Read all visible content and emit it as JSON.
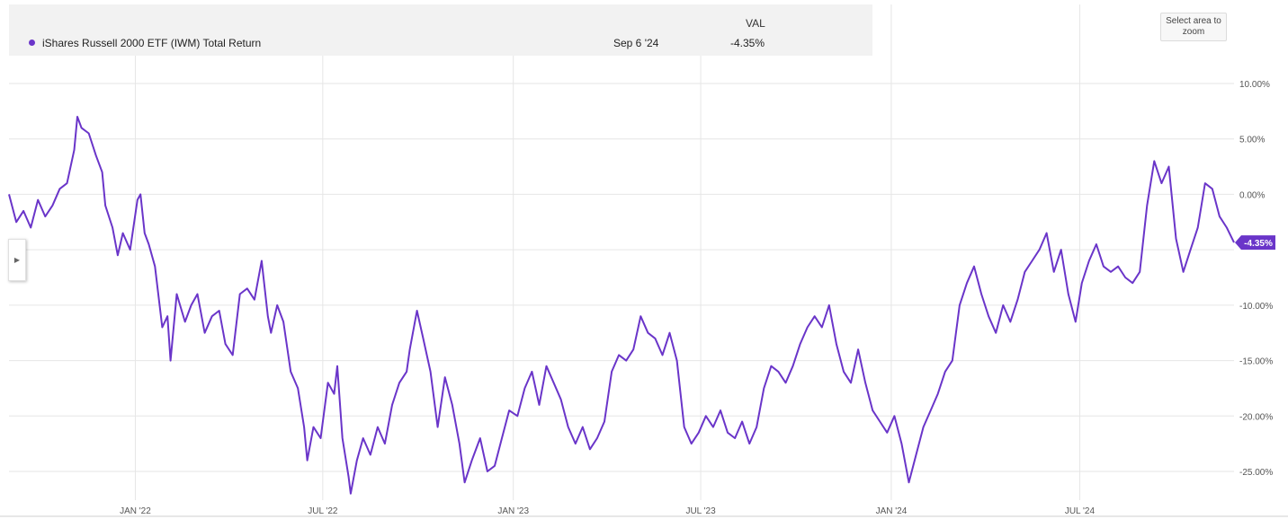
{
  "legend": {
    "column_header": "VAL",
    "series_name": "iShares Russell 2000 ETF (IWM) Total Return",
    "date": "Sep 6 '24",
    "value": "-4.35%"
  },
  "controls": {
    "zoom_hint": "Select area to zoom",
    "side_toggle_icon": "chevron-right-icon"
  },
  "colors": {
    "line": "#6a35c9",
    "grid": "#e6e6e6",
    "legend_bg": "#f2f2f2"
  },
  "chart_data": {
    "type": "line",
    "grid": true,
    "y_tick_labels": [
      "10.00%",
      "5.00%",
      "0.00%",
      "-10.00%",
      "-15.00%",
      "-20.00%",
      "-25.00%"
    ],
    "ylim": [
      -27,
      12.5
    ],
    "x_tick_labels": [
      "JAN '22",
      "JUL '22",
      "JAN '23",
      "JUL '23",
      "JAN '24",
      "JUL '24"
    ],
    "last_value_label": "-4.35%",
    "series": [
      {
        "name": "iShares Russell 2000 ETF (IWM) Total Return",
        "points": [
          [
            "2021-09-01",
            0.0
          ],
          [
            "2021-09-08",
            -2.5
          ],
          [
            "2021-09-15",
            -1.5
          ],
          [
            "2021-09-22",
            -3.0
          ],
          [
            "2021-09-29",
            -0.5
          ],
          [
            "2021-10-06",
            -2.0
          ],
          [
            "2021-10-13",
            -1.0
          ],
          [
            "2021-10-20",
            0.5
          ],
          [
            "2021-10-27",
            1.0
          ],
          [
            "2021-11-03",
            4.0
          ],
          [
            "2021-11-06",
            7.0
          ],
          [
            "2021-11-10",
            6.0
          ],
          [
            "2021-11-17",
            5.5
          ],
          [
            "2021-11-24",
            3.5
          ],
          [
            "2021-11-30",
            2.0
          ],
          [
            "2021-12-03",
            -1.0
          ],
          [
            "2021-12-10",
            -3.0
          ],
          [
            "2021-12-15",
            -5.5
          ],
          [
            "2021-12-20",
            -3.5
          ],
          [
            "2021-12-27",
            -5.0
          ],
          [
            "2022-01-03",
            -0.5
          ],
          [
            "2022-01-06",
            0.0
          ],
          [
            "2022-01-10",
            -3.5
          ],
          [
            "2022-01-14",
            -4.5
          ],
          [
            "2022-01-20",
            -6.5
          ],
          [
            "2022-01-27",
            -12.0
          ],
          [
            "2022-02-01",
            -11.0
          ],
          [
            "2022-02-04",
            -15.0
          ],
          [
            "2022-02-10",
            -9.0
          ],
          [
            "2022-02-18",
            -11.5
          ],
          [
            "2022-02-24",
            -10.0
          ],
          [
            "2022-03-02",
            -9.0
          ],
          [
            "2022-03-09",
            -12.5
          ],
          [
            "2022-03-16",
            -11.0
          ],
          [
            "2022-03-23",
            -10.5
          ],
          [
            "2022-03-29",
            -13.5
          ],
          [
            "2022-04-05",
            -14.5
          ],
          [
            "2022-04-12",
            -9.0
          ],
          [
            "2022-04-19",
            -8.5
          ],
          [
            "2022-04-26",
            -9.5
          ],
          [
            "2022-05-03",
            -6.0
          ],
          [
            "2022-05-09",
            -11.0
          ],
          [
            "2022-05-12",
            -12.5
          ],
          [
            "2022-05-18",
            -10.0
          ],
          [
            "2022-05-24",
            -11.5
          ],
          [
            "2022-05-31",
            -16.0
          ],
          [
            "2022-06-07",
            -17.5
          ],
          [
            "2022-06-13",
            -21.0
          ],
          [
            "2022-06-16",
            -24.0
          ],
          [
            "2022-06-22",
            -21.0
          ],
          [
            "2022-06-29",
            -22.0
          ],
          [
            "2022-07-06",
            -17.0
          ],
          [
            "2022-07-12",
            -18.0
          ],
          [
            "2022-07-15",
            -15.5
          ],
          [
            "2022-07-20",
            -22.0
          ],
          [
            "2022-07-26",
            -25.5
          ],
          [
            "2022-07-28",
            -27.0
          ],
          [
            "2022-08-03",
            -24.0
          ],
          [
            "2022-08-09",
            -22.0
          ],
          [
            "2022-08-16",
            -23.5
          ],
          [
            "2022-08-23",
            -21.0
          ],
          [
            "2022-08-30",
            -22.5
          ],
          [
            "2022-09-06",
            -19.0
          ],
          [
            "2022-09-13",
            -17.0
          ],
          [
            "2022-09-20",
            -16.0
          ],
          [
            "2022-09-23",
            -14.0
          ],
          [
            "2022-09-30",
            -10.5
          ],
          [
            "2022-10-06",
            -13.0
          ],
          [
            "2022-10-13",
            -16.0
          ],
          [
            "2022-10-20",
            -21.0
          ],
          [
            "2022-10-27",
            -16.5
          ],
          [
            "2022-11-03",
            -19.0
          ],
          [
            "2022-11-10",
            -22.5
          ],
          [
            "2022-11-15",
            -26.0
          ],
          [
            "2022-11-22",
            -24.0
          ],
          [
            "2022-11-30",
            -22.0
          ],
          [
            "2022-12-07",
            -25.0
          ],
          [
            "2022-12-14",
            -24.5
          ],
          [
            "2022-12-21",
            -22.0
          ],
          [
            "2022-12-28",
            -19.5
          ],
          [
            "2023-01-05",
            -20.0
          ],
          [
            "2023-01-12",
            -17.5
          ],
          [
            "2023-01-19",
            -16.0
          ],
          [
            "2023-01-26",
            -19.0
          ],
          [
            "2023-02-02",
            -15.5
          ],
          [
            "2023-02-09",
            -17.0
          ],
          [
            "2023-02-16",
            -18.5
          ],
          [
            "2023-02-23",
            -21.0
          ],
          [
            "2023-03-02",
            -22.5
          ],
          [
            "2023-03-09",
            -21.0
          ],
          [
            "2023-03-16",
            -23.0
          ],
          [
            "2023-03-23",
            -22.0
          ],
          [
            "2023-03-30",
            -20.5
          ],
          [
            "2023-04-06",
            -16.0
          ],
          [
            "2023-04-13",
            -14.5
          ],
          [
            "2023-04-20",
            -15.0
          ],
          [
            "2023-04-27",
            -14.0
          ],
          [
            "2023-05-04",
            -11.0
          ],
          [
            "2023-05-11",
            -12.5
          ],
          [
            "2023-05-18",
            -13.0
          ],
          [
            "2023-05-25",
            -14.5
          ],
          [
            "2023-06-01",
            -12.5
          ],
          [
            "2023-06-08",
            -15.0
          ],
          [
            "2023-06-15",
            -21.0
          ],
          [
            "2023-06-22",
            -22.5
          ],
          [
            "2023-06-29",
            -21.5
          ],
          [
            "2023-07-06",
            -20.0
          ],
          [
            "2023-07-13",
            -21.0
          ],
          [
            "2023-07-20",
            -19.5
          ],
          [
            "2023-07-27",
            -21.5
          ],
          [
            "2023-08-03",
            -22.0
          ],
          [
            "2023-08-10",
            -20.5
          ],
          [
            "2023-08-17",
            -22.5
          ],
          [
            "2023-08-24",
            -21.0
          ],
          [
            "2023-08-31",
            -17.5
          ],
          [
            "2023-09-07",
            -15.5
          ],
          [
            "2023-09-14",
            -16.0
          ],
          [
            "2023-09-21",
            -17.0
          ],
          [
            "2023-09-28",
            -15.5
          ],
          [
            "2023-10-05",
            -13.5
          ],
          [
            "2023-10-12",
            -12.0
          ],
          [
            "2023-10-19",
            -11.0
          ],
          [
            "2023-10-26",
            -12.0
          ],
          [
            "2023-11-02",
            -10.0
          ],
          [
            "2023-11-09",
            -13.5
          ],
          [
            "2023-11-16",
            -16.0
          ],
          [
            "2023-11-23",
            -17.0
          ],
          [
            "2023-11-30",
            -14.0
          ],
          [
            "2023-12-07",
            -17.0
          ],
          [
            "2023-12-14",
            -19.5
          ],
          [
            "2023-12-21",
            -20.5
          ],
          [
            "2023-12-28",
            -21.5
          ],
          [
            "2024-01-04",
            -20.0
          ],
          [
            "2024-01-11",
            -22.5
          ],
          [
            "2024-01-18",
            -26.0
          ],
          [
            "2024-01-25",
            -23.5
          ],
          [
            "2024-02-01",
            -21.0
          ],
          [
            "2024-02-08",
            -19.5
          ],
          [
            "2024-02-15",
            -18.0
          ],
          [
            "2024-02-22",
            -16.0
          ],
          [
            "2024-02-29",
            -15.0
          ],
          [
            "2024-03-07",
            -10.0
          ],
          [
            "2024-03-14",
            -8.0
          ],
          [
            "2024-03-21",
            -6.5
          ],
          [
            "2024-03-28",
            -9.0
          ],
          [
            "2024-04-04",
            -11.0
          ],
          [
            "2024-04-11",
            -12.5
          ],
          [
            "2024-04-18",
            -10.0
          ],
          [
            "2024-04-25",
            -11.5
          ],
          [
            "2024-05-02",
            -9.5
          ],
          [
            "2024-05-09",
            -7.0
          ],
          [
            "2024-05-16",
            -6.0
          ],
          [
            "2024-05-23",
            -5.0
          ],
          [
            "2024-05-30",
            -3.5
          ],
          [
            "2024-06-06",
            -7.0
          ],
          [
            "2024-06-13",
            -5.0
          ],
          [
            "2024-06-20",
            -9.0
          ],
          [
            "2024-06-27",
            -11.5
          ],
          [
            "2024-07-03",
            -8.0
          ],
          [
            "2024-07-10",
            -6.0
          ],
          [
            "2024-07-17",
            -4.5
          ],
          [
            "2024-07-24",
            -6.5
          ],
          [
            "2024-07-31",
            -7.0
          ],
          [
            "2024-08-07",
            -6.5
          ],
          [
            "2024-08-14",
            -7.5
          ],
          [
            "2024-08-21",
            -8.0
          ],
          [
            "2024-08-28",
            -7.0
          ],
          [
            "2024-09-04",
            -1.0
          ],
          [
            "2024-09-11",
            3.0
          ],
          [
            "2024-09-18",
            1.0
          ],
          [
            "2024-09-25",
            2.5
          ],
          [
            "2024-10-02",
            -4.0
          ],
          [
            "2024-10-09",
            -7.0
          ],
          [
            "2024-10-16",
            -5.0
          ],
          [
            "2024-10-23",
            -3.0
          ],
          [
            "2024-10-30",
            1.0
          ],
          [
            "2024-11-06",
            0.5
          ],
          [
            "2024-11-13",
            -2.0
          ],
          [
            "2024-11-20",
            -3.0
          ],
          [
            "2024-11-27",
            -4.35
          ]
        ]
      }
    ]
  }
}
